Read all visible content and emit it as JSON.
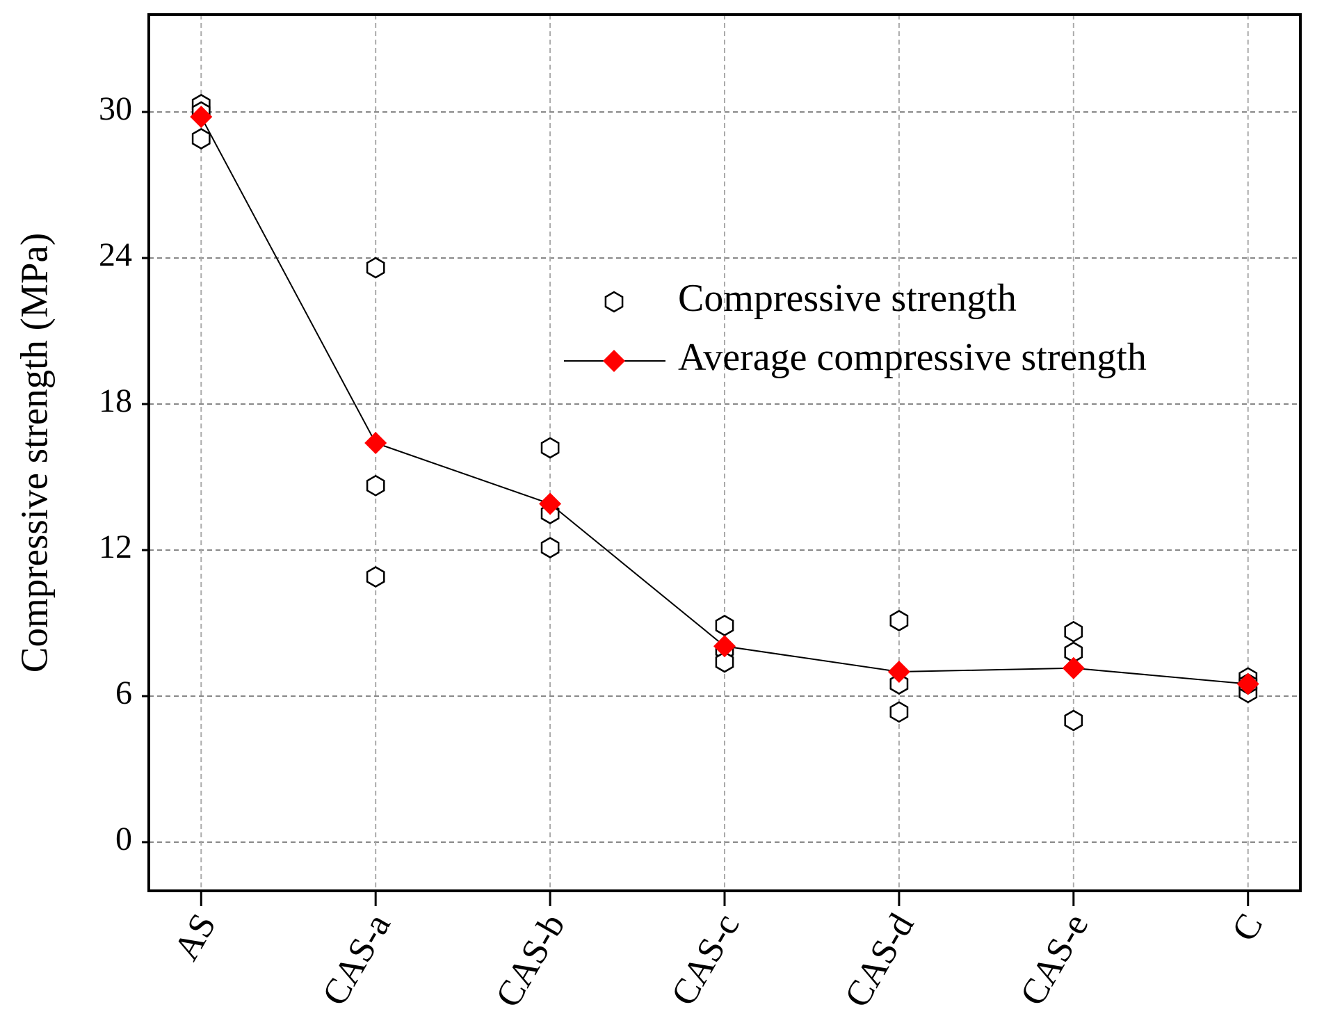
{
  "chart_data": {
    "type": "scatter-line",
    "y_label": "Compressive strength (MPa)",
    "categories": [
      "AS",
      "CAS-a",
      "CAS-b",
      "CAS-c",
      "CAS-d",
      "CAS-e",
      "C"
    ],
    "series": [
      {
        "name": "Compressive strength",
        "type": "scatter",
        "color": "#000000",
        "values": [
          [
            30.3,
            28.9,
            30.0
          ],
          [
            23.6,
            14.65,
            10.9
          ],
          [
            16.2,
            13.5,
            12.1
          ],
          [
            8.9,
            7.9,
            7.4
          ],
          [
            9.1,
            6.5,
            5.35
          ],
          [
            8.65,
            7.8,
            5.0
          ],
          [
            6.75,
            6.15,
            6.5
          ]
        ]
      },
      {
        "name": "Average compressive strength",
        "type": "line",
        "color": "#ff0000",
        "values": [
          29.8,
          16.4,
          13.9,
          8.05,
          7.0,
          7.15,
          6.5
        ]
      }
    ],
    "ylim": [
      -2,
      34
    ],
    "yticks": [
      0,
      6,
      12,
      18,
      24,
      30
    ],
    "grid": true,
    "legend": "top-right"
  }
}
